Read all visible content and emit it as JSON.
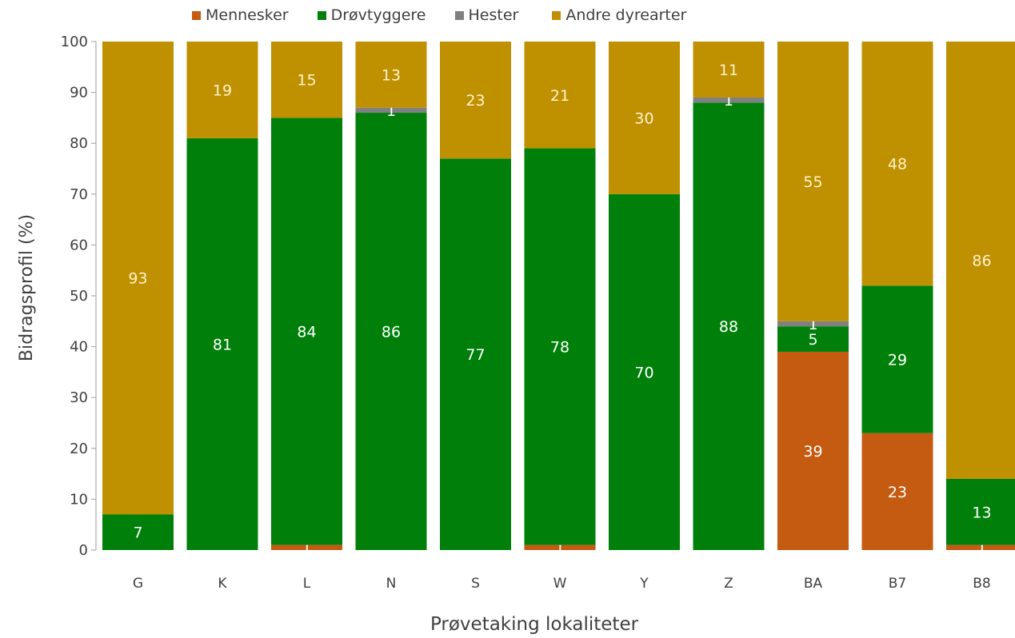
{
  "chart_data": {
    "type": "bar",
    "stacked": true,
    "xlabel": "Prøvetaking lokaliteter",
    "ylabel": "Bidragsprofil (%)",
    "ylim": [
      0,
      100
    ],
    "yticks": [
      0,
      10,
      20,
      30,
      40,
      50,
      60,
      70,
      80,
      90,
      100
    ],
    "grid": false,
    "legend_position": "top",
    "categories": [
      "G",
      "K",
      "L",
      "N",
      "S",
      "W",
      "Y",
      "Z",
      "BA",
      "B7",
      "B8"
    ],
    "series": [
      {
        "name": "Mennesker",
        "color": "#c55a11",
        "values": [
          0,
          0,
          1,
          0,
          0,
          1,
          0,
          0,
          39,
          23,
          1
        ],
        "labels": [
          "",
          "",
          "1",
          "",
          "",
          "1",
          "",
          "",
          "39",
          "23",
          "1"
        ]
      },
      {
        "name": "Drøvtyggere",
        "color": "#00800b",
        "values": [
          7,
          81,
          84,
          86,
          77,
          78,
          70,
          88,
          5,
          29,
          13
        ],
        "labels": [
          "7",
          "81",
          "84",
          "86",
          "77",
          "78",
          "70",
          "88",
          "5",
          "29",
          "13"
        ]
      },
      {
        "name": "Hester",
        "color": "#808080",
        "values": [
          0,
          0,
          0,
          1,
          0,
          0,
          0,
          1,
          1,
          0,
          0
        ],
        "labels": [
          "",
          "",
          "",
          "1",
          "",
          "",
          "",
          "1",
          "1",
          "",
          ""
        ]
      },
      {
        "name": "Andre dyrearter",
        "color": "#bf9000",
        "values": [
          93,
          19,
          15,
          13,
          23,
          21,
          30,
          11,
          55,
          48,
          86
        ],
        "labels": [
          "93",
          "19",
          "15",
          "13",
          "23",
          "21",
          "30",
          "11",
          "55",
          "48",
          "86"
        ]
      }
    ]
  }
}
